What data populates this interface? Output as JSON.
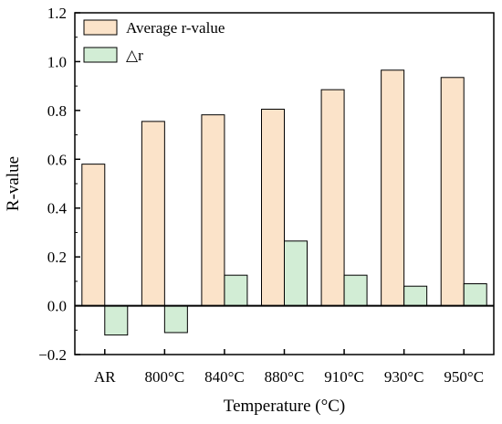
{
  "chart_data": {
    "type": "bar",
    "categories": [
      "AR",
      "800°C",
      "840°C",
      "880°C",
      "910°C",
      "930°C",
      "950°C"
    ],
    "series": [
      {
        "name": "Average r-value",
        "color": "#fbe3c9",
        "values": [
          0.58,
          0.755,
          0.782,
          0.805,
          0.885,
          0.965,
          0.935
        ]
      },
      {
        "name": "△r",
        "color": "#d2edd5",
        "values": [
          -0.12,
          -0.11,
          0.125,
          0.265,
          0.125,
          0.08,
          0.09
        ]
      }
    ],
    "xlabel": "Temperature (°C)",
    "ylabel": "R-value",
    "ylim": [
      -0.2,
      1.2
    ],
    "yticks": [
      -0.2,
      0.0,
      0.2,
      0.4,
      0.6,
      0.8,
      1.0,
      1.2
    ],
    "ytick_labels": [
      "−0.2",
      "0.0",
      "0.2",
      "0.4",
      "0.6",
      "0.8",
      "1.0",
      "1.2"
    ],
    "legend_position": "top-left",
    "grid": false,
    "zero_line": true
  }
}
